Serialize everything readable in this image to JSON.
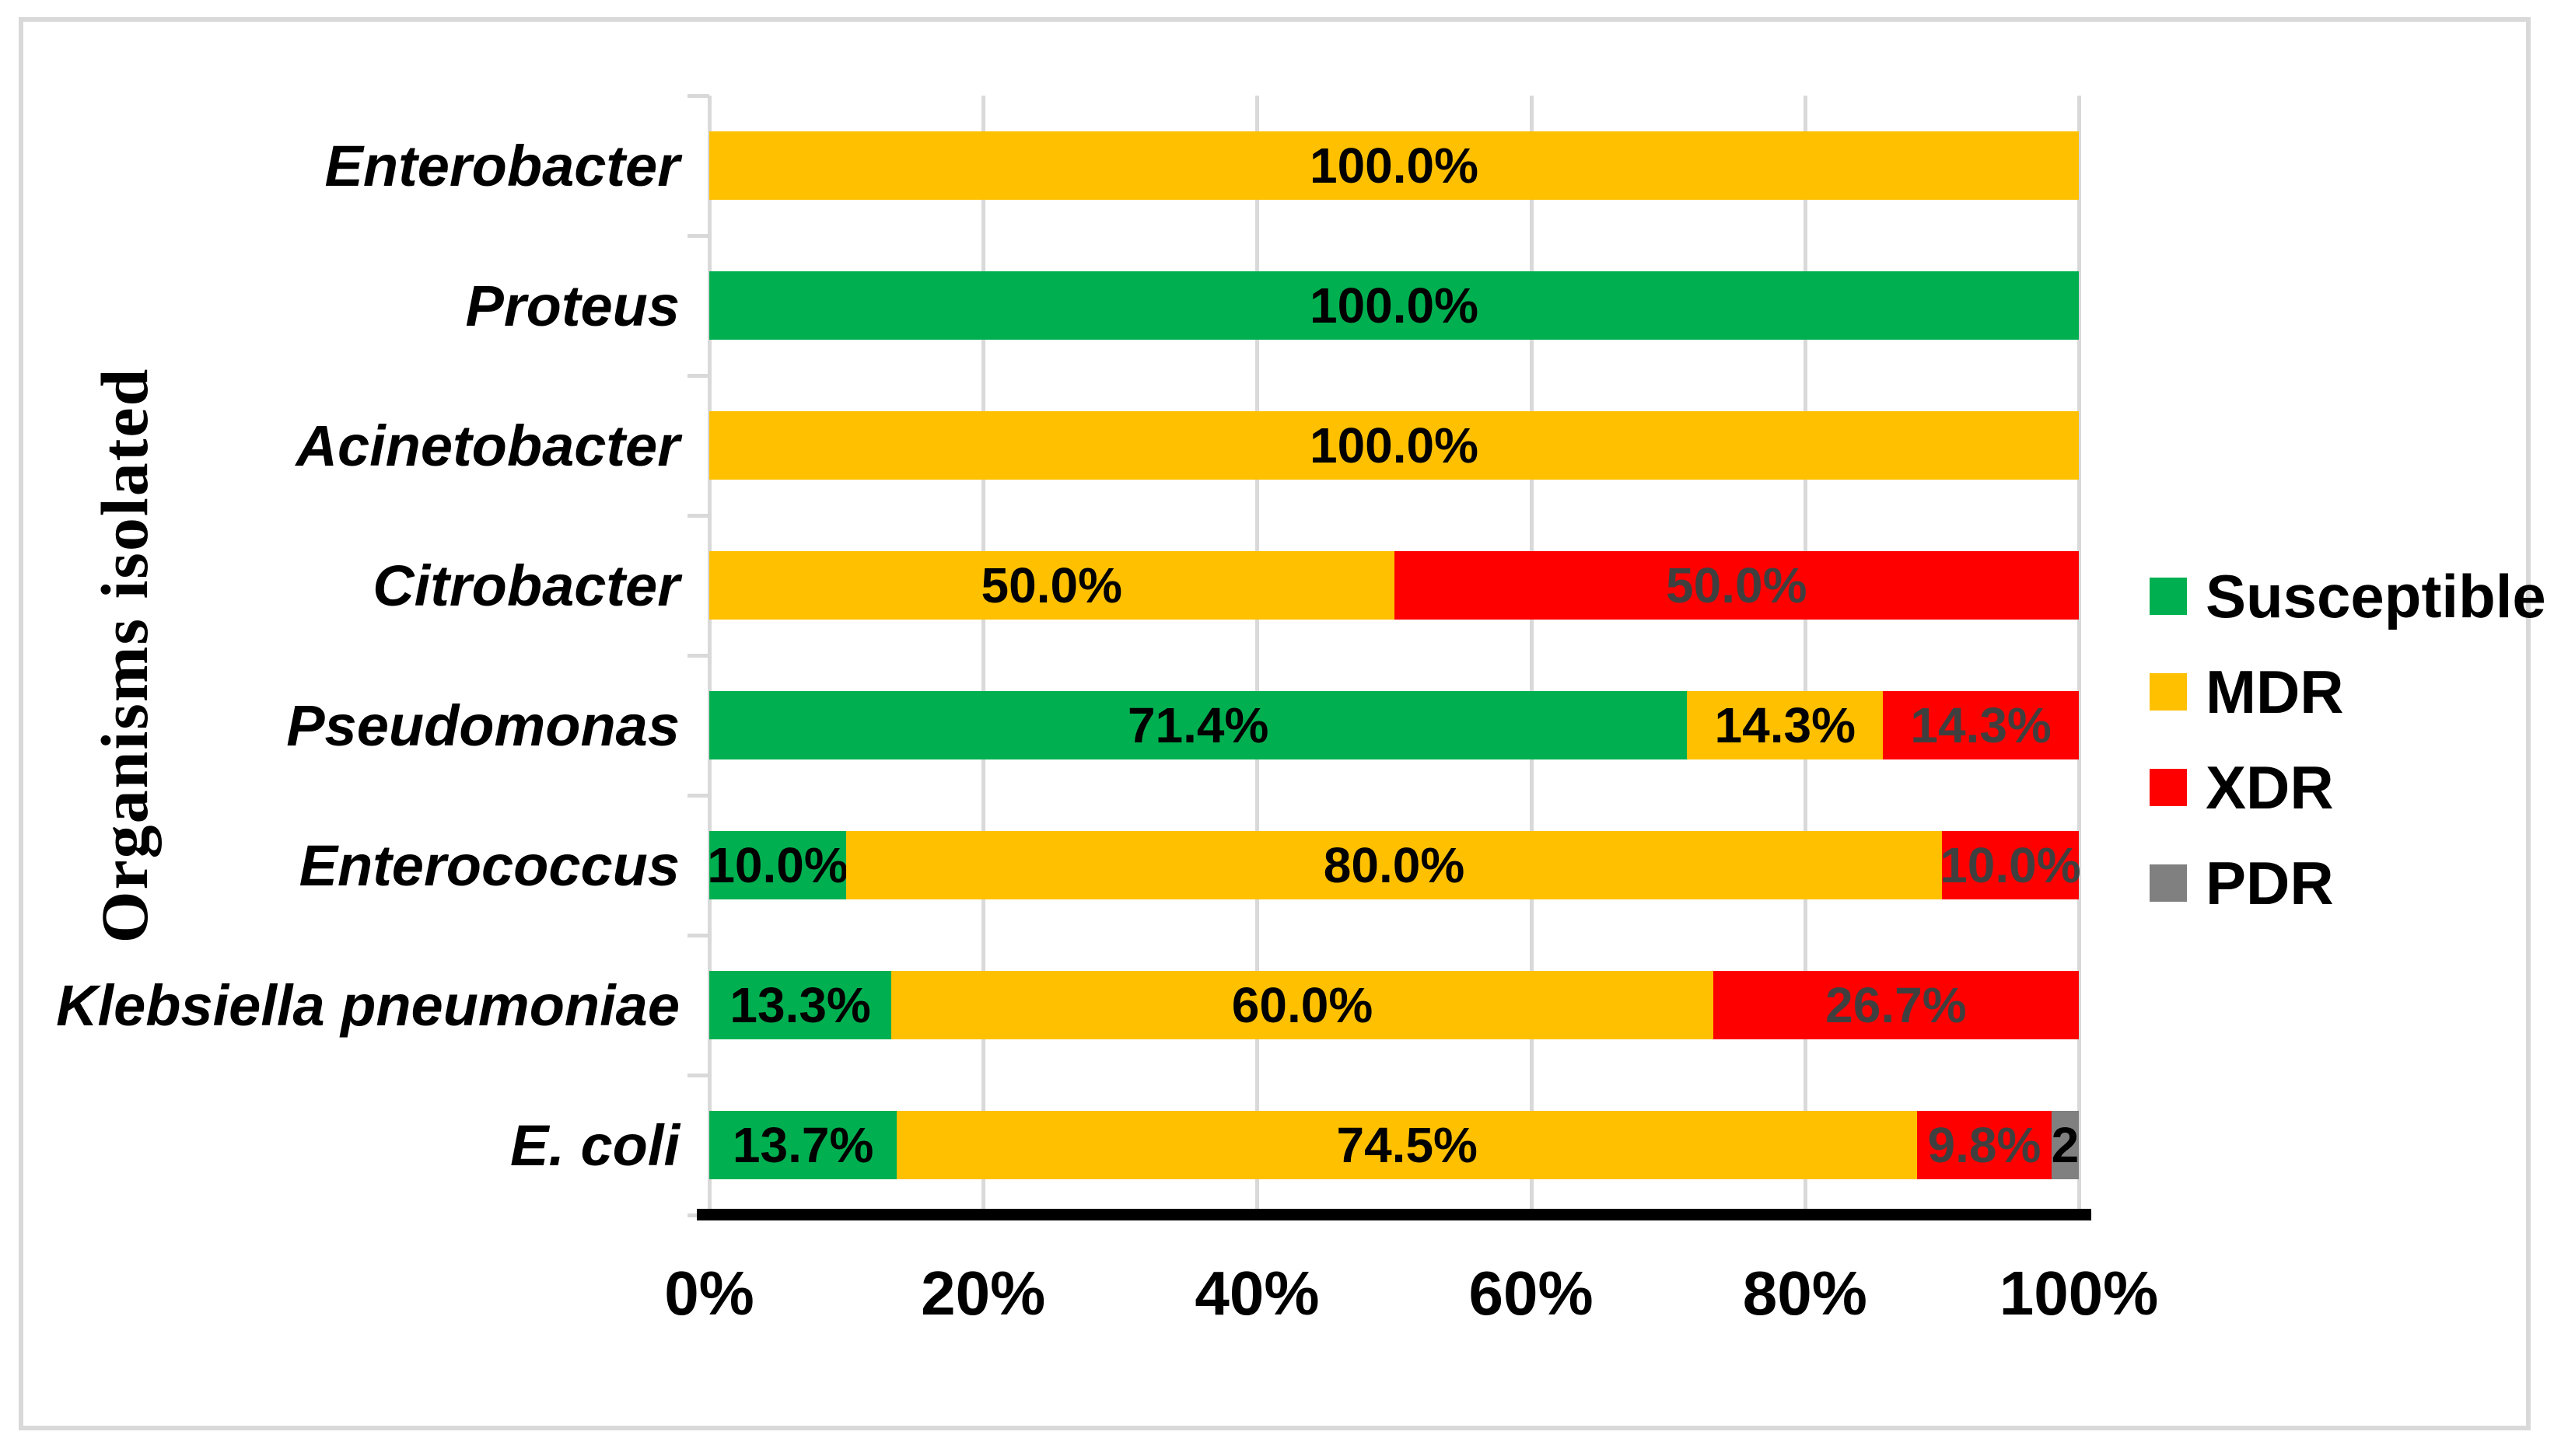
{
  "figure": {
    "background": "#ffffff",
    "border_color": "#d9d9d9",
    "gridline_color": "#d9d9d9",
    "axis_line_color": "#000000"
  },
  "chart_data": {
    "type": "bar",
    "orientation": "horizontal",
    "stacked": true,
    "title": "",
    "xlabel": "",
    "ylabel": "Organisms isolated",
    "xlim": [
      0,
      100
    ],
    "grid": true,
    "legend_position": "right",
    "x_ticks": [
      "0%",
      "20%",
      "40%",
      "60%",
      "80%",
      "100%"
    ],
    "categories": [
      "Enterobacter",
      "Proteus",
      "Acinetobacter",
      "Citrobacter",
      "Pseudomonas",
      "Enterococcus",
      "Klebsiella pneumoniae",
      "E. coli"
    ],
    "series": [
      {
        "name": "Susceptible",
        "color": "#00B050",
        "label_color": "#000000",
        "values": [
          0,
          100,
          0,
          0,
          71.4,
          10,
          13.3,
          13.7
        ],
        "labels": [
          "",
          "100.0%",
          "",
          "",
          "71.4%",
          "10.0%",
          "13.3%",
          "13.7%"
        ]
      },
      {
        "name": "MDR",
        "color": "#FFC000",
        "label_color": "#000000",
        "values": [
          100,
          0,
          100,
          50,
          14.3,
          80,
          60,
          74.5
        ],
        "labels": [
          "100.0%",
          "",
          "100.0%",
          "50.0%",
          "14.3%",
          "80.0%",
          "60.0%",
          "74.5%"
        ]
      },
      {
        "name": "XDR",
        "color": "#FF0000",
        "label_color": "#3F3F3F",
        "values": [
          0,
          0,
          0,
          50,
          14.3,
          10,
          26.7,
          9.8
        ],
        "labels": [
          "",
          "",
          "",
          "50.0%",
          "14.3%",
          "10.0%",
          "26.7%",
          "9.8%"
        ]
      },
      {
        "name": "PDR",
        "color": "#808080",
        "label_color": "#000000",
        "values": [
          0,
          0,
          0,
          0,
          0,
          0,
          0,
          2
        ],
        "labels": [
          "",
          "",
          "",
          "",
          "",
          "",
          "",
          "2"
        ]
      }
    ]
  },
  "legend": {
    "items": [
      {
        "label": "Susceptible",
        "color": "#00B050"
      },
      {
        "label": "MDR",
        "color": "#FFC000"
      },
      {
        "label": "XDR",
        "color": "#FF0000"
      },
      {
        "label": "PDR",
        "color": "#808080"
      }
    ]
  }
}
